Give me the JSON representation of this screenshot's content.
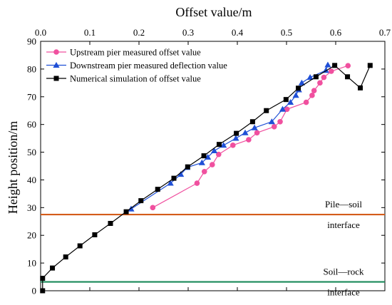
{
  "chart_data": {
    "type": "line",
    "xlabel": "Offset value/m",
    "ylabel": "Height position/m",
    "xlim": [
      0.0,
      0.7
    ],
    "ylim": [
      0,
      90
    ],
    "x_ticks": [
      "0.0",
      "0.1",
      "0.2",
      "0.3",
      "0.4",
      "0.5",
      "0.6",
      "0.7"
    ],
    "y_ticks": [
      "0",
      "10",
      "20",
      "30",
      "40",
      "50",
      "60",
      "70",
      "80",
      "90"
    ],
    "x_axis_position": "top",
    "legend_position": "top-left",
    "grid": false,
    "series": [
      {
        "name": "Upstream pier measured offset value",
        "color": "#f0509f",
        "marker": "circle",
        "points": [
          [
            0.228,
            30.0
          ],
          [
            0.318,
            38.8
          ],
          [
            0.333,
            43.0
          ],
          [
            0.349,
            45.5
          ],
          [
            0.362,
            49.2
          ],
          [
            0.391,
            52.5
          ],
          [
            0.423,
            54.5
          ],
          [
            0.44,
            57.0
          ],
          [
            0.475,
            59.2
          ],
          [
            0.487,
            61.0
          ],
          [
            0.501,
            65.5
          ],
          [
            0.54,
            68.0
          ],
          [
            0.552,
            70.5
          ],
          [
            0.556,
            72.2
          ],
          [
            0.568,
            75.0
          ],
          [
            0.576,
            77.0
          ],
          [
            0.591,
            79.2
          ],
          [
            0.625,
            81.2
          ]
        ]
      },
      {
        "name": "Downstream pier  measured deflection value",
        "color": "#1f4fd6",
        "marker": "triangle",
        "points": [
          [
            0.184,
            29.5
          ],
          [
            0.264,
            38.8
          ],
          [
            0.285,
            42.0
          ],
          [
            0.298,
            44.5
          ],
          [
            0.328,
            46.2
          ],
          [
            0.34,
            48.2
          ],
          [
            0.353,
            50.5
          ],
          [
            0.372,
            52.5
          ],
          [
            0.397,
            55.0
          ],
          [
            0.416,
            57.0
          ],
          [
            0.435,
            58.8
          ],
          [
            0.47,
            61.0
          ],
          [
            0.492,
            65.5
          ],
          [
            0.508,
            68.0
          ],
          [
            0.519,
            70.5
          ],
          [
            0.525,
            72.5
          ],
          [
            0.531,
            75.0
          ],
          [
            0.548,
            77.0
          ],
          [
            0.58,
            79.5
          ],
          [
            0.584,
            81.5
          ]
        ]
      },
      {
        "name": "Numerical simulation of offset value",
        "color": "#000000",
        "marker": "square",
        "points": [
          [
            0.004,
            0.0
          ],
          [
            0.004,
            4.5
          ],
          [
            0.024,
            8.2
          ],
          [
            0.051,
            12.2
          ],
          [
            0.08,
            16.2
          ],
          [
            0.11,
            20.2
          ],
          [
            0.142,
            24.3
          ],
          [
            0.174,
            28.5
          ],
          [
            0.204,
            32.5
          ],
          [
            0.238,
            36.6
          ],
          [
            0.271,
            40.6
          ],
          [
            0.299,
            44.7
          ],
          [
            0.332,
            48.7
          ],
          [
            0.363,
            52.8
          ],
          [
            0.398,
            56.8
          ],
          [
            0.431,
            61.0
          ],
          [
            0.459,
            65.0
          ],
          [
            0.499,
            69.0
          ],
          [
            0.524,
            73.1
          ],
          [
            0.56,
            77.2
          ],
          [
            0.598,
            81.3
          ],
          [
            0.624,
            77.2
          ],
          [
            0.65,
            73.2
          ],
          [
            0.67,
            81.3
          ]
        ]
      }
    ],
    "reference_lines": [
      {
        "y": 27.5,
        "color": "#d45d1a",
        "label_top": "Pile—soil",
        "label_bottom": "interface"
      },
      {
        "y": 3.2,
        "color": "#1a8a5a",
        "label_top": "Soil—rock",
        "label_bottom": "interface"
      }
    ]
  }
}
